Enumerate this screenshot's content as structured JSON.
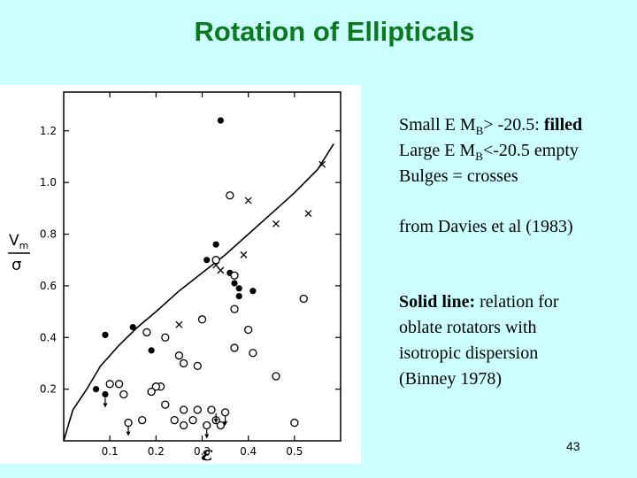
{
  "slide": {
    "title": "Rotation of Ellipticals",
    "page_number": "43",
    "notes": {
      "small_prefix": "Small E M",
      "small_sub": "B",
      "small_mid": "> -20.5: ",
      "small_bold": "filled",
      "large_prefix": "Large E M",
      "large_sub": "B",
      "large_mid": "<-20.5 empty",
      "bulges": "Bulges = crosses",
      "source": "from Davies et al (1983)",
      "solid_bold": "Solid line:",
      "solid_rest_1": " relation for",
      "solid_line_2": "oblate rotators with",
      "solid_line_3": "isotropic dispersion",
      "solid_line_4": "(Binney 1978)"
    }
  },
  "chart_data": {
    "type": "scatter",
    "xlabel": "ε",
    "ylabel_num": "V",
    "ylabel_num_sub": "m",
    "ylabel_den": "σ",
    "xlim": [
      0.0,
      0.6
    ],
    "ylim": [
      0.0,
      1.35
    ],
    "x_ticks": [
      0.1,
      0.2,
      0.3,
      0.4,
      0.5
    ],
    "x_tick_labels": [
      "0.1",
      "0.2",
      "0.3",
      "0.4",
      "0.5"
    ],
    "y_ticks": [
      0.2,
      0.4,
      0.6,
      0.8,
      1.0,
      1.2
    ],
    "y_tick_labels": [
      "0.2",
      "0.4",
      "0.6",
      "0.8",
      "1.0",
      "1.2"
    ],
    "series": [
      {
        "marker": "filled-circle",
        "points": [
          [
            0.34,
            1.24
          ],
          [
            0.33,
            0.76
          ],
          [
            0.31,
            0.7
          ],
          [
            0.36,
            0.65
          ],
          [
            0.37,
            0.61
          ],
          [
            0.38,
            0.59
          ],
          [
            0.38,
            0.56
          ],
          [
            0.41,
            0.58
          ],
          [
            0.15,
            0.44
          ],
          [
            0.09,
            0.41
          ],
          [
            0.19,
            0.35
          ],
          [
            0.07,
            0.2
          ],
          [
            0.09,
            0.18
          ]
        ]
      },
      {
        "marker": "open-circle",
        "points": [
          [
            0.36,
            0.95
          ],
          [
            0.33,
            0.7
          ],
          [
            0.37,
            0.64
          ],
          [
            0.52,
            0.55
          ],
          [
            0.37,
            0.51
          ],
          [
            0.3,
            0.47
          ],
          [
            0.18,
            0.42
          ],
          [
            0.4,
            0.43
          ],
          [
            0.22,
            0.4
          ],
          [
            0.37,
            0.36
          ],
          [
            0.41,
            0.34
          ],
          [
            0.25,
            0.33
          ],
          [
            0.26,
            0.3
          ],
          [
            0.29,
            0.29
          ],
          [
            0.46,
            0.25
          ],
          [
            0.12,
            0.22
          ],
          [
            0.1,
            0.22
          ],
          [
            0.21,
            0.21
          ],
          [
            0.2,
            0.21
          ],
          [
            0.19,
            0.19
          ],
          [
            0.13,
            0.18
          ],
          [
            0.22,
            0.14
          ],
          [
            0.26,
            0.12
          ],
          [
            0.29,
            0.12
          ],
          [
            0.32,
            0.12
          ],
          [
            0.35,
            0.11
          ],
          [
            0.28,
            0.08
          ],
          [
            0.33,
            0.08
          ],
          [
            0.24,
            0.08
          ],
          [
            0.14,
            0.07
          ],
          [
            0.17,
            0.08
          ],
          [
            0.31,
            0.06
          ],
          [
            0.26,
            0.06
          ],
          [
            0.34,
            0.06
          ],
          [
            0.5,
            0.07
          ]
        ]
      },
      {
        "marker": "cross",
        "points": [
          [
            0.56,
            1.07
          ],
          [
            0.4,
            0.93
          ],
          [
            0.53,
            0.88
          ],
          [
            0.46,
            0.84
          ],
          [
            0.39,
            0.72
          ],
          [
            0.33,
            0.68
          ],
          [
            0.34,
            0.66
          ],
          [
            0.25,
            0.45
          ]
        ]
      }
    ],
    "arrows_down": [
      [
        0.09,
        0.18
      ],
      [
        0.14,
        0.07
      ],
      [
        0.33,
        0.12
      ],
      [
        0.35,
        0.11
      ],
      [
        0.31,
        0.06
      ]
    ],
    "binney_line": [
      [
        0.0,
        0.0
      ],
      [
        0.02,
        0.12
      ],
      [
        0.05,
        0.2
      ],
      [
        0.08,
        0.29
      ],
      [
        0.12,
        0.37
      ],
      [
        0.16,
        0.44
      ],
      [
        0.2,
        0.5
      ],
      [
        0.25,
        0.58
      ],
      [
        0.3,
        0.65
      ],
      [
        0.35,
        0.72
      ],
      [
        0.4,
        0.8
      ],
      [
        0.45,
        0.88
      ],
      [
        0.5,
        0.96
      ],
      [
        0.55,
        1.05
      ],
      [
        0.585,
        1.15
      ]
    ]
  }
}
